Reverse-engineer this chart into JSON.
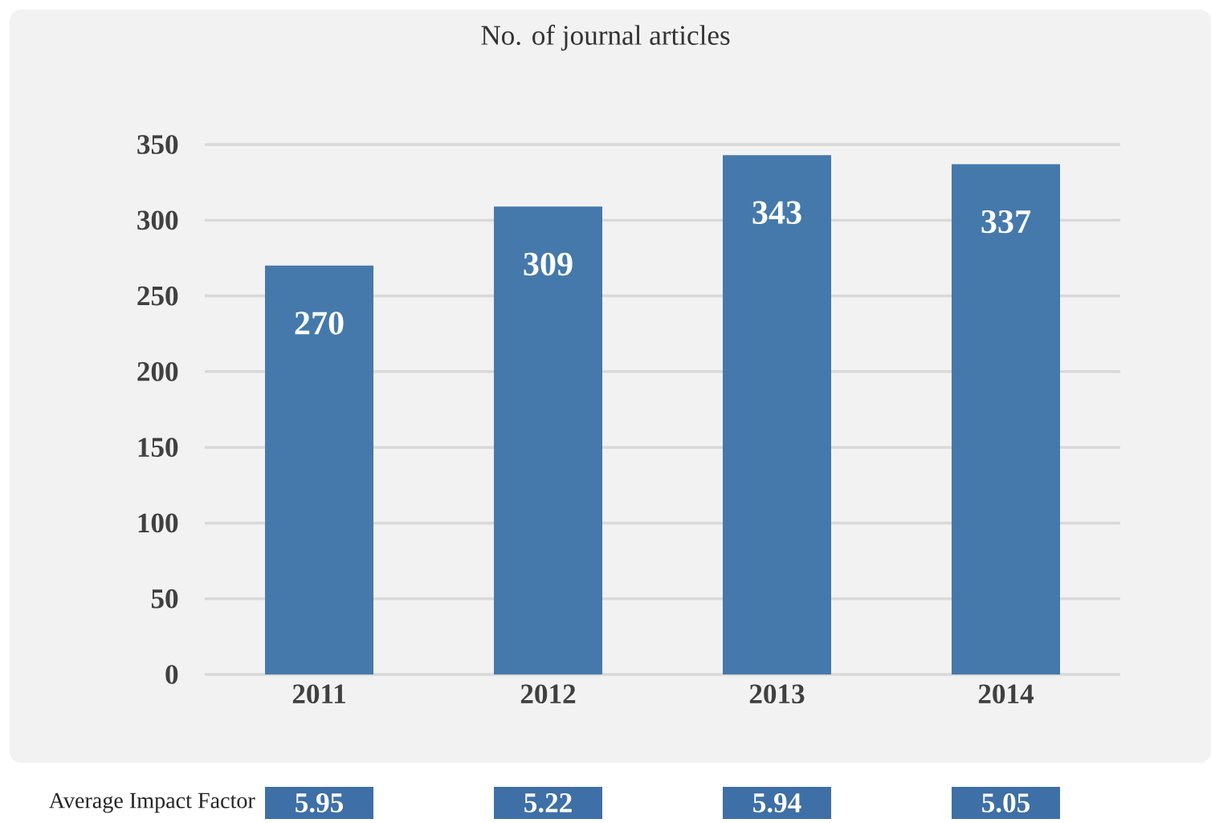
{
  "chart_data": [
    {
      "type": "bar",
      "title": "No. of journal articles",
      "categories": [
        "2011",
        "2012",
        "2013",
        "2014"
      ],
      "values": [
        270,
        309,
        343,
        337
      ],
      "value_labels": [
        "270",
        "309",
        "343",
        "337"
      ],
      "color": "#4579ab",
      "ylim": [
        0,
        350
      ],
      "yticks": [
        0,
        50,
        100,
        150,
        200,
        250,
        300,
        350
      ],
      "grid": "y"
    },
    {
      "type": "other",
      "title": "Average Impact Factor",
      "categories": [
        null,
        null,
        null,
        null
      ],
      "values": [
        5.95,
        5.22,
        5.94,
        5.05
      ],
      "value_labels": [
        "5.95",
        "5.22",
        "5.94",
        "5.05"
      ],
      "color": "#3e6fa6"
    }
  ]
}
